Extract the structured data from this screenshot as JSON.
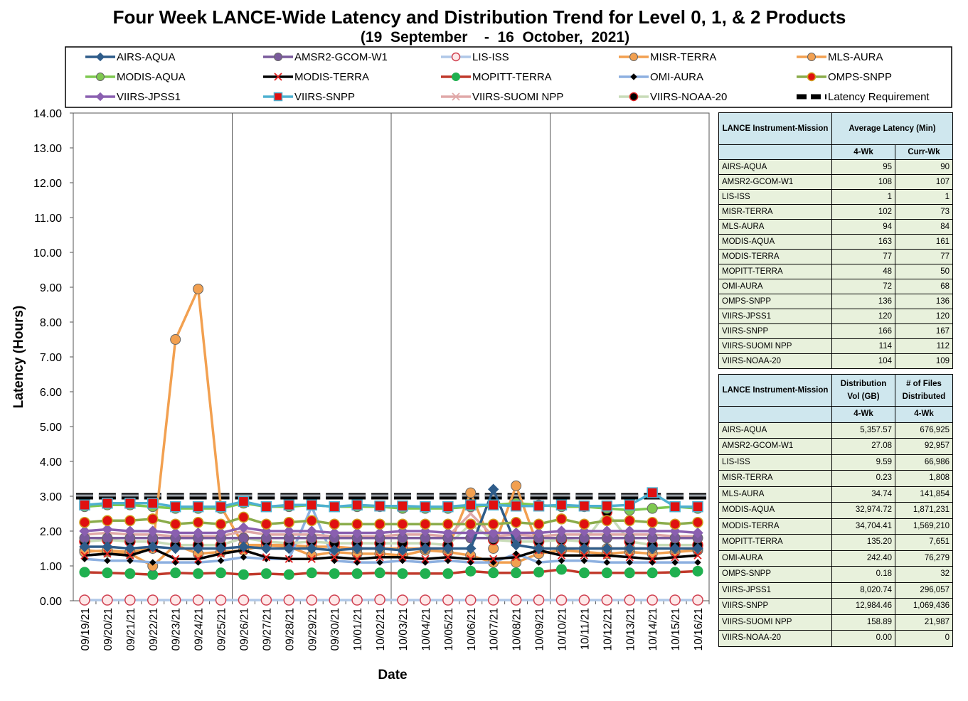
{
  "title": "Four Week LANCE-Wide Latency and Distribution Trend for Level 0, 1, & 2 Products",
  "subtitle": "(19  September    -  16  October,  2021)",
  "chart_data": {
    "type": "line",
    "xlabel": "Date",
    "ylabel": "Latency (Hours)",
    "ylim": [
      0,
      14
    ],
    "ytick_labels": [
      "0.00",
      "1.00",
      "2.00",
      "3.00",
      "4.00",
      "5.00",
      "6.00",
      "7.00",
      "8.00",
      "9.00",
      "10.00",
      "11.00",
      "12.00",
      "13.00",
      "14.00"
    ],
    "grid": "vertical lines at week boundaries",
    "legend_position": "top",
    "x": [
      "09/19/21",
      "09/20/21",
      "09/21/21",
      "09/22/21",
      "09/23/21",
      "09/24/21",
      "09/25/21",
      "09/26/21",
      "09/27/21",
      "09/28/21",
      "09/29/21",
      "09/30/21",
      "10/01/21",
      "10/02/21",
      "10/03/21",
      "10/04/21",
      "10/05/21",
      "10/06/21",
      "10/07/21",
      "10/08/21",
      "10/09/21",
      "10/10/21",
      "10/11/21",
      "10/12/21",
      "10/13/21",
      "10/14/21",
      "10/15/21",
      "10/16/21"
    ],
    "series": [
      {
        "name": "AIRS-AQUA",
        "color": "#2e5c8a",
        "marker": "diamond",
        "values": [
          1.55,
          1.55,
          1.5,
          1.55,
          1.5,
          1.5,
          1.5,
          1.55,
          1.5,
          1.5,
          1.5,
          1.45,
          1.5,
          1.5,
          1.45,
          1.5,
          1.5,
          1.5,
          3.2,
          1.6,
          1.5,
          1.5,
          1.5,
          1.5,
          1.5,
          1.5,
          1.5,
          1.5
        ]
      },
      {
        "name": "AMSR2-GCOM-W1",
        "color": "#7a5a9c",
        "marker": "circle",
        "values": [
          1.8,
          1.8,
          1.8,
          1.8,
          1.8,
          1.8,
          1.8,
          1.8,
          1.8,
          1.8,
          1.8,
          1.8,
          1.8,
          1.8,
          1.8,
          1.8,
          1.8,
          1.8,
          1.8,
          1.8,
          1.8,
          1.8,
          1.8,
          1.8,
          1.8,
          1.8,
          1.8,
          1.8
        ]
      },
      {
        "name": "LIS-ISS",
        "color": "#b0c8e8",
        "marker": "open-circle",
        "values": [
          0.02,
          0.02,
          0.02,
          0.02,
          0.02,
          0.02,
          0.02,
          0.02,
          0.02,
          0.02,
          0.02,
          0.02,
          0.02,
          0.03,
          0.02,
          0.02,
          0.02,
          0.02,
          0.02,
          0.02,
          0.02,
          0.02,
          0.02,
          0.02,
          0.02,
          0.02,
          0.02,
          0.02
        ]
      },
      {
        "name": "MISR-TERRA",
        "color": "#f2a050",
        "marker": "circle",
        "values": [
          1.4,
          1.45,
          1.4,
          1.5,
          7.5,
          8.95,
          2.7,
          1.6,
          1.6,
          1.6,
          1.55,
          1.55,
          1.5,
          1.5,
          1.5,
          1.5,
          1.5,
          3.1,
          1.5,
          3.3,
          1.5,
          1.5,
          1.5,
          1.5,
          1.5,
          1.5,
          1.5,
          1.5
        ]
      },
      {
        "name": "MLS-AURA",
        "color": "#f2a050",
        "marker": "circle",
        "values": [
          1.45,
          1.4,
          1.35,
          1.0,
          1.6,
          1.35,
          1.4,
          1.45,
          1.6,
          1.55,
          1.3,
          1.4,
          1.35,
          1.35,
          1.3,
          1.45,
          1.4,
          1.3,
          1.1,
          1.1,
          1.35,
          1.45,
          1.4,
          1.35,
          1.4,
          1.35,
          1.4,
          1.45
        ]
      },
      {
        "name": "MODIS-AQUA",
        "color": "#7ec850",
        "marker": "circle",
        "values": [
          2.7,
          2.75,
          2.75,
          2.7,
          2.65,
          2.65,
          2.65,
          2.8,
          2.7,
          2.7,
          2.75,
          2.7,
          2.7,
          2.7,
          2.65,
          2.65,
          2.65,
          2.7,
          2.75,
          2.8,
          2.75,
          2.7,
          2.7,
          2.65,
          2.6,
          2.65,
          2.7,
          2.65
        ]
      },
      {
        "name": "MODIS-TERRA",
        "color": "#000000",
        "marker": "x",
        "values": [
          1.3,
          1.35,
          1.3,
          1.5,
          1.2,
          1.2,
          1.35,
          1.45,
          1.25,
          1.2,
          1.2,
          1.25,
          1.2,
          1.25,
          1.25,
          1.2,
          1.25,
          1.2,
          1.2,
          1.25,
          1.45,
          1.3,
          1.3,
          1.3,
          1.25,
          1.2,
          1.25,
          1.3
        ]
      },
      {
        "name": "MOPITT-TERRA",
        "color": "#c0392b",
        "marker": "green-circle",
        "values": [
          0.82,
          0.8,
          0.78,
          0.75,
          0.8,
          0.78,
          0.8,
          0.75,
          0.78,
          0.75,
          0.8,
          0.78,
          0.78,
          0.8,
          0.78,
          0.78,
          0.78,
          0.85,
          0.8,
          0.8,
          0.82,
          0.9,
          0.8,
          0.8,
          0.8,
          0.8,
          0.82,
          0.85
        ]
      },
      {
        "name": "OMI-AURA",
        "color": "#8db0e0",
        "marker": "small-diamond",
        "values": [
          1.2,
          1.15,
          1.15,
          1.1,
          1.1,
          1.1,
          1.15,
          1.25,
          1.2,
          1.2,
          2.7,
          1.15,
          1.1,
          1.1,
          1.15,
          1.1,
          1.15,
          1.1,
          1.1,
          1.35,
          1.1,
          1.15,
          1.15,
          1.1,
          1.1,
          1.1,
          1.1,
          1.1
        ]
      },
      {
        "name": "OMPS-SNPP",
        "color": "#8aac4a",
        "marker": "red-circle",
        "values": [
          2.25,
          2.3,
          2.3,
          2.35,
          2.2,
          2.25,
          2.2,
          2.4,
          2.2,
          2.25,
          2.3,
          2.2,
          2.2,
          2.2,
          2.2,
          2.2,
          2.2,
          2.2,
          2.2,
          2.25,
          2.2,
          2.35,
          2.2,
          2.3,
          2.3,
          2.25,
          2.2,
          2.25
        ]
      },
      {
        "name": "VIIRS-JPSS1",
        "color": "#8a5fb0",
        "marker": "diamond",
        "values": [
          2.0,
          2.05,
          2.0,
          2.0,
          1.95,
          1.95,
          1.95,
          2.1,
          2.0,
          2.0,
          2.0,
          1.95,
          1.95,
          1.95,
          2.0,
          2.0,
          1.95,
          1.95,
          1.95,
          1.95,
          1.95,
          2.0,
          2.0,
          2.0,
          2.0,
          2.0,
          2.0,
          1.95
        ]
      },
      {
        "name": "VIIRS-SNPP",
        "color": "#4db0d0",
        "marker": "red-square",
        "values": [
          2.75,
          2.8,
          2.8,
          2.8,
          2.7,
          2.7,
          2.7,
          2.85,
          2.7,
          2.75,
          2.75,
          2.7,
          2.75,
          2.72,
          2.72,
          2.7,
          2.7,
          2.75,
          2.75,
          2.72,
          2.72,
          2.75,
          2.72,
          2.72,
          2.75,
          3.1,
          2.7,
          2.7
        ]
      },
      {
        "name": "VIIRS-SUOMI NPP",
        "color": "#e0a8a8",
        "marker": "x",
        "values": [
          1.9,
          1.95,
          1.9,
          1.9,
          1.85,
          1.85,
          1.85,
          2.0,
          1.9,
          1.9,
          1.9,
          1.85,
          1.85,
          1.85,
          1.9,
          1.9,
          1.85,
          2.5,
          1.85,
          1.9,
          1.85,
          1.9,
          1.9,
          1.9,
          1.9,
          1.9,
          1.85,
          1.85
        ]
      },
      {
        "name": "VIIRS-NOAA-20",
        "color": "#c8dcb8",
        "marker": "black-circle",
        "values": [
          1.7,
          1.75,
          1.7,
          1.7,
          1.6,
          1.6,
          1.6,
          1.8,
          1.7,
          1.65,
          1.7,
          1.65,
          1.65,
          1.65,
          1.65,
          1.65,
          1.6,
          2.2,
          1.75,
          1.7,
          1.7,
          1.75,
          1.7,
          2.55,
          1.7,
          1.6,
          1.6,
          1.6
        ]
      },
      {
        "name": "Latency Requirement",
        "color": "#000000",
        "marker": "dash",
        "values": [
          3,
          3,
          3,
          3,
          3,
          3,
          3,
          3,
          3,
          3,
          3,
          3,
          3,
          3,
          3,
          3,
          3,
          3,
          3,
          3,
          3,
          3,
          3,
          3,
          3,
          3,
          3,
          3
        ]
      }
    ]
  },
  "latency_table": {
    "col1_header": "LANCE Instrument-Mission",
    "col2_header": "Average Latency (Min)",
    "sub_4wk": "4-Wk",
    "sub_curr": "Curr-Wk",
    "rows": [
      [
        "AIRS-AQUA",
        "95",
        "90"
      ],
      [
        "AMSR2-GCOM-W1",
        "108",
        "107"
      ],
      [
        "LIS-ISS",
        "1",
        "1"
      ],
      [
        "MISR-TERRA",
        "102",
        "73"
      ],
      [
        "MLS-AURA",
        "94",
        "84"
      ],
      [
        "MODIS-AQUA",
        "163",
        "161"
      ],
      [
        "MODIS-TERRA",
        "77",
        "77"
      ],
      [
        "MOPITT-TERRA",
        "48",
        "50"
      ],
      [
        "OMI-AURA",
        "72",
        "68"
      ],
      [
        "OMPS-SNPP",
        "136",
        "136"
      ],
      [
        "VIIRS-JPSS1",
        "120",
        "120"
      ],
      [
        "VIIRS-SNPP",
        "166",
        "167"
      ],
      [
        "VIIRS-SUOMI NPP",
        "114",
        "112"
      ],
      [
        "VIIRS-NOAA-20",
        "104",
        "109"
      ]
    ]
  },
  "distribution_table": {
    "col1_header": "LANCE Instrument-Mission",
    "col2_header": "Distribution Vol (GB)",
    "col3_header": "# of Files Distributed",
    "sub_4wk": "4-Wk",
    "sub_4wk2": "4-Wk",
    "rows": [
      [
        "AIRS-AQUA",
        "5,357.57",
        "676,925"
      ],
      [
        "AMSR2-GCOM-W1",
        "27.08",
        "92,957"
      ],
      [
        "LIS-ISS",
        "9.59",
        "66,986"
      ],
      [
        "MISR-TERRA",
        "0.23",
        "1,808"
      ],
      [
        "MLS-AURA",
        "34.74",
        "141,854"
      ],
      [
        "MODIS-AQUA",
        "32,974.72",
        "1,871,231"
      ],
      [
        "MODIS-TERRA",
        "34,704.41",
        "1,569,210"
      ],
      [
        "MOPITT-TERRA",
        "135.20",
        "7,651"
      ],
      [
        "OMI-AURA",
        "242.40",
        "76,279"
      ],
      [
        "OMPS-SNPP",
        "0.18",
        "32"
      ],
      [
        "VIIRS-JPSS1",
        "8,020.74",
        "296,057"
      ],
      [
        "VIIRS-SNPP",
        "12,984.46",
        "1,069,436"
      ],
      [
        "VIIRS-SUOMI NPP",
        "158.89",
        "21,987"
      ],
      [
        "VIIRS-NOAA-20",
        "0.00",
        "0"
      ]
    ]
  }
}
